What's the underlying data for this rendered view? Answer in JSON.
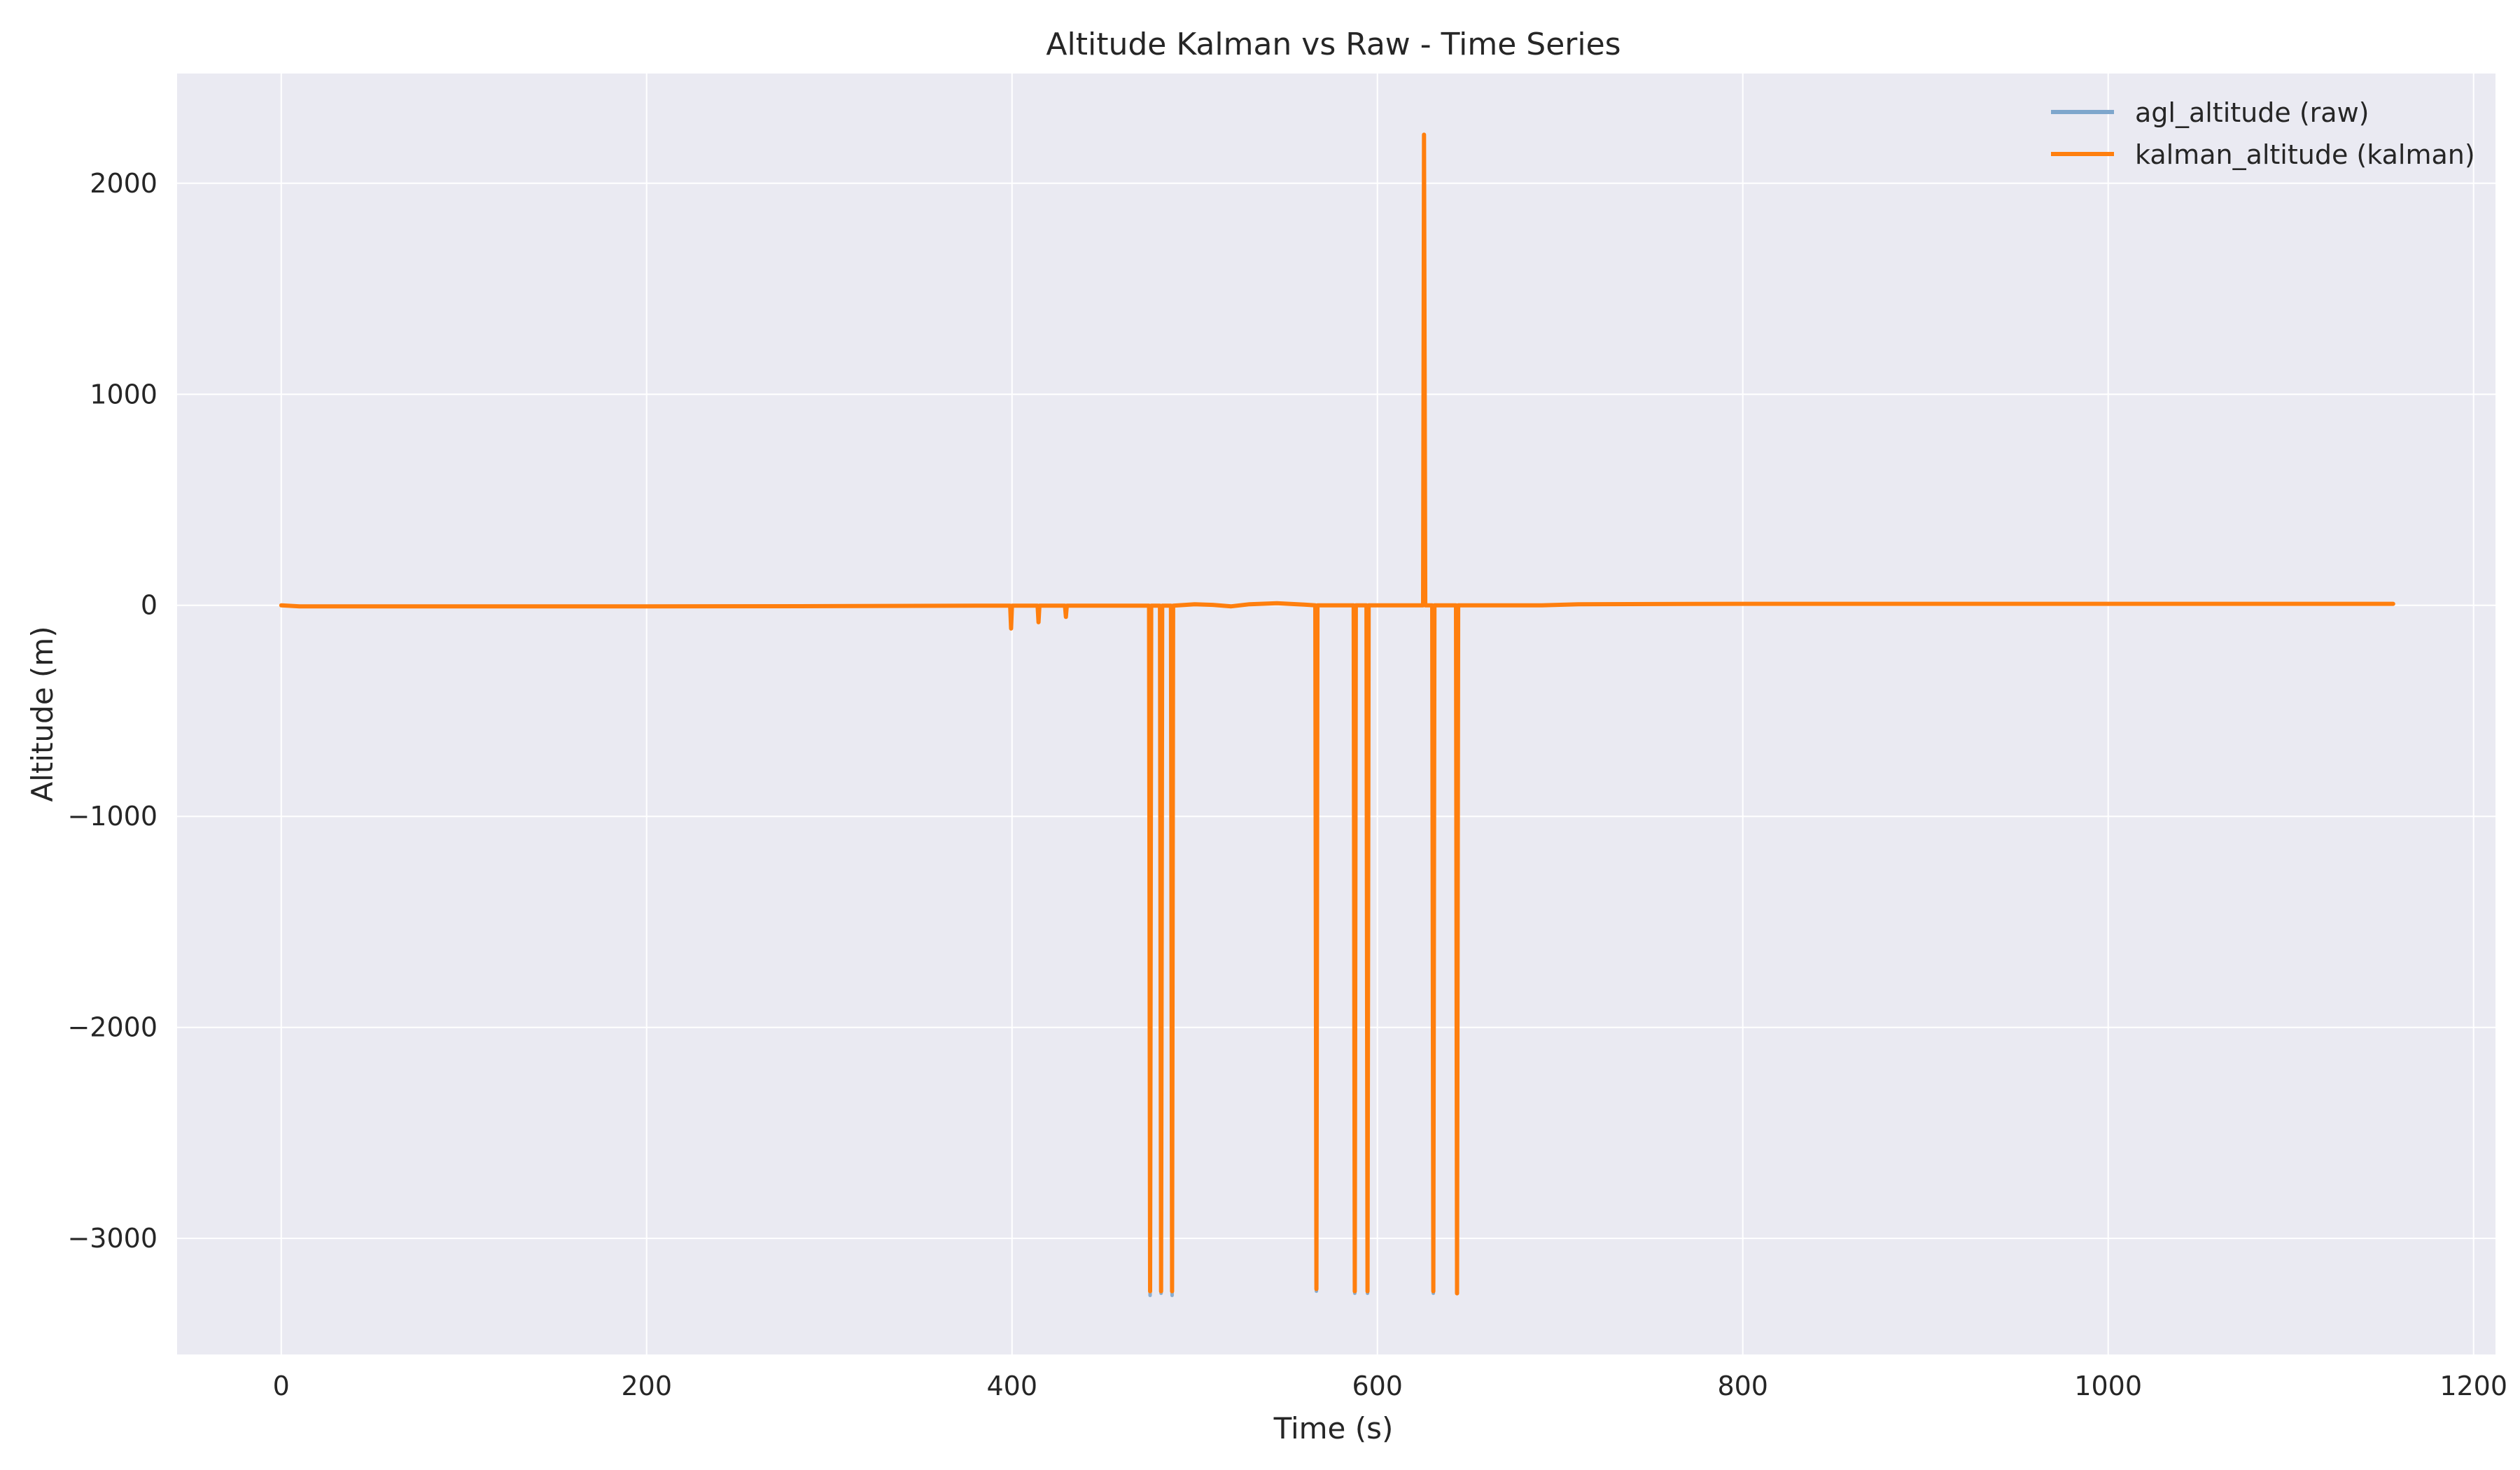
{
  "chart_data": {
    "type": "line",
    "title": "Altitude Kalman vs Raw - Time Series",
    "xlabel": "Time (s)",
    "ylabel": "Altitude (m)",
    "xlim": [
      -57,
      1212
    ],
    "ylim": [
      -3550,
      2520
    ],
    "xticks": [
      0,
      200,
      400,
      600,
      800,
      1000,
      1200
    ],
    "yticks": [
      -3000,
      -2000,
      -1000,
      0,
      1000,
      2000
    ],
    "grid": true,
    "legend_position": "top-right",
    "colors": {
      "background": "#eaeaf2",
      "grid": "#ffffff",
      "raw": "#7ea6cc",
      "kalman": "#ff7f0e",
      "text": "#262626"
    },
    "series": [
      {
        "name": "agl_altitude (raw)",
        "color": "#7ea6cc",
        "points": [
          [
            0,
            0
          ],
          [
            10,
            -5
          ],
          [
            100,
            -5
          ],
          [
            200,
            -5
          ],
          [
            300,
            -4
          ],
          [
            380,
            -2
          ],
          [
            399,
            -2
          ],
          [
            399.5,
            -110
          ],
          [
            400,
            -2
          ],
          [
            414,
            -2
          ],
          [
            414.5,
            -80
          ],
          [
            415,
            -2
          ],
          [
            429,
            -2
          ],
          [
            429.5,
            -55
          ],
          [
            430,
            -2
          ],
          [
            475,
            -2
          ],
          [
            475.6,
            -3270
          ],
          [
            476.2,
            -2
          ],
          [
            481,
            -2
          ],
          [
            481.6,
            -3260
          ],
          [
            482.2,
            -2
          ],
          [
            487,
            -2
          ],
          [
            487.6,
            -3270
          ],
          [
            488.2,
            -2
          ],
          [
            500,
            5
          ],
          [
            510,
            2
          ],
          [
            520,
            -5
          ],
          [
            530,
            5
          ],
          [
            545,
            10
          ],
          [
            560,
            3
          ],
          [
            566,
            0
          ],
          [
            566.6,
            -3250
          ],
          [
            567.2,
            0
          ],
          [
            587,
            0
          ],
          [
            587.6,
            -3260
          ],
          [
            588.2,
            0
          ],
          [
            594,
            0
          ],
          [
            594.6,
            -3260
          ],
          [
            595.2,
            0
          ],
          [
            625,
            0
          ],
          [
            625.5,
            2230
          ],
          [
            626.2,
            0
          ],
          [
            630,
            0
          ],
          [
            630.6,
            -3260
          ],
          [
            631.2,
            0
          ],
          [
            643,
            0
          ],
          [
            643.6,
            -3260
          ],
          [
            644.2,
            0
          ],
          [
            690,
            0
          ],
          [
            710,
            5
          ],
          [
            800,
            7
          ],
          [
            1000,
            7
          ],
          [
            1156,
            7
          ]
        ]
      },
      {
        "name": "kalman_altitude (kalman)",
        "color": "#ff7f0e",
        "points": [
          [
            0,
            0
          ],
          [
            10,
            -5
          ],
          [
            100,
            -5
          ],
          [
            200,
            -5
          ],
          [
            300,
            -4
          ],
          [
            380,
            -2
          ],
          [
            399,
            -2
          ],
          [
            399.5,
            -110
          ],
          [
            400,
            -2
          ],
          [
            414,
            -2
          ],
          [
            414.5,
            -80
          ],
          [
            415,
            -2
          ],
          [
            429,
            -2
          ],
          [
            429.5,
            -55
          ],
          [
            430,
            -2
          ],
          [
            475,
            -2
          ],
          [
            475.6,
            -3250
          ],
          [
            476.2,
            -2
          ],
          [
            481,
            -2
          ],
          [
            481.6,
            -3250
          ],
          [
            482.2,
            -2
          ],
          [
            487,
            -2
          ],
          [
            487.6,
            -3250
          ],
          [
            488.2,
            -2
          ],
          [
            500,
            5
          ],
          [
            510,
            2
          ],
          [
            520,
            -5
          ],
          [
            530,
            5
          ],
          [
            545,
            10
          ],
          [
            560,
            3
          ],
          [
            566,
            0
          ],
          [
            566.6,
            -3240
          ],
          [
            567.2,
            0
          ],
          [
            587,
            0
          ],
          [
            587.6,
            -3250
          ],
          [
            588.2,
            0
          ],
          [
            594,
            0
          ],
          [
            594.6,
            -3250
          ],
          [
            595.2,
            0
          ],
          [
            625,
            0
          ],
          [
            625.5,
            2230
          ],
          [
            626.2,
            0
          ],
          [
            630,
            0
          ],
          [
            630.6,
            -3250
          ],
          [
            631.2,
            0
          ],
          [
            643,
            0
          ],
          [
            643.6,
            -3260
          ],
          [
            644.2,
            0
          ],
          [
            690,
            0
          ],
          [
            710,
            5
          ],
          [
            800,
            7
          ],
          [
            1000,
            7
          ],
          [
            1156,
            7
          ]
        ]
      }
    ]
  }
}
